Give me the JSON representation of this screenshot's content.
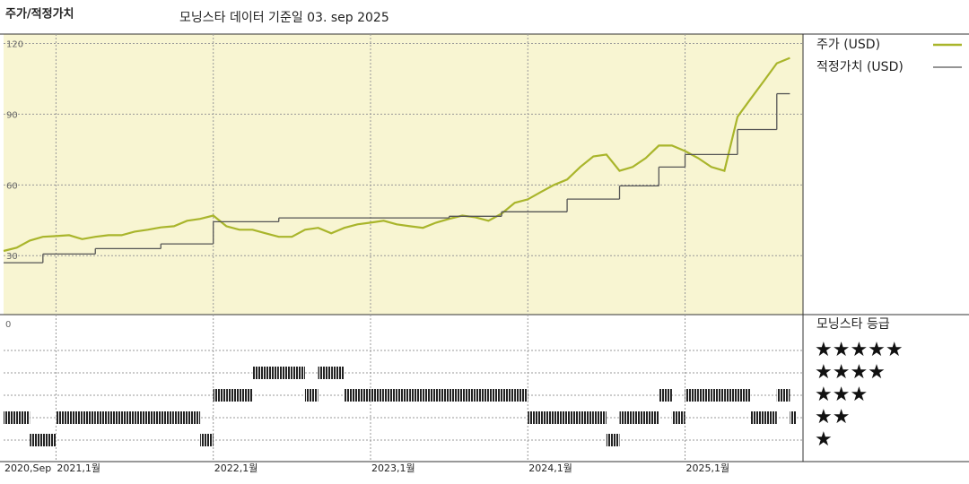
{
  "chart_data": {
    "type": "line",
    "title": "주가/적정가치",
    "subtitle": "모닝스타 데이터 기준일 03. sep 2025",
    "xlim": [
      "2020-09",
      "2025-10"
    ],
    "xticks": [
      {
        "value": "2020-09",
        "label": "2020,Sep"
      },
      {
        "value": "2021-01",
        "label": "2021,1월"
      },
      {
        "value": "2022-01",
        "label": "2022,1월"
      },
      {
        "value": "2023-01",
        "label": "2023,1월"
      },
      {
        "value": "2024-01",
        "label": "2024,1월"
      },
      {
        "value": "2025-01",
        "label": "2025,1월"
      }
    ],
    "ylim": [
      5,
      124
    ],
    "yticks": [
      30,
      60,
      90,
      120
    ],
    "grid": true,
    "legend": "right",
    "series": [
      {
        "name": "주가 (USD)",
        "color": "#a9b52b",
        "style": "line",
        "x": [
          "2020-09",
          "2020-10",
          "2020-11",
          "2020-12",
          "2021-01",
          "2021-02",
          "2021-03",
          "2021-04",
          "2021-05",
          "2021-06",
          "2021-07",
          "2021-08",
          "2021-09",
          "2021-10",
          "2021-11",
          "2021-12",
          "2022-01",
          "2022-02",
          "2022-03",
          "2022-04",
          "2022-05",
          "2022-06",
          "2022-07",
          "2022-08",
          "2022-09",
          "2022-10",
          "2022-11",
          "2022-12",
          "2023-01",
          "2023-02",
          "2023-03",
          "2023-04",
          "2023-05",
          "2023-06",
          "2023-07",
          "2023-08",
          "2023-09",
          "2023-10",
          "2023-11",
          "2023-12",
          "2024-01",
          "2024-02",
          "2024-03",
          "2024-04",
          "2024-05",
          "2024-06",
          "2024-07",
          "2024-08",
          "2024-09",
          "2024-10",
          "2024-11",
          "2024-12",
          "2025-01",
          "2025-02",
          "2025-03",
          "2025-04",
          "2025-05",
          "2025-06",
          "2025-07",
          "2025-08",
          "2025-09"
        ],
        "values": [
          32,
          33.4,
          36.4,
          38,
          38.3,
          38.7,
          37,
          38,
          38.7,
          38.7,
          40.2,
          41,
          42,
          42.5,
          44.8,
          45.6,
          47,
          42.5,
          41,
          41,
          39.5,
          38,
          38,
          41,
          41.8,
          39.5,
          41.8,
          43.3,
          44,
          44.8,
          43.3,
          42.5,
          41.8,
          44,
          45.6,
          47,
          46.3,
          44.8,
          47.8,
          52.4,
          53.9,
          57,
          60,
          62.3,
          67.6,
          72.1,
          72.9,
          66,
          67.6,
          71.4,
          76.7,
          76.7,
          74.4,
          71.4,
          67.6,
          66,
          88.9,
          96.5,
          104,
          111.6,
          113.9
        ]
      },
      {
        "name": "적정가치 (USD)",
        "color": "#555555",
        "style": "step",
        "x": [
          "2020-09",
          "2020-12",
          "2021-04",
          "2021-09",
          "2022-01",
          "2022-06",
          "2023-07",
          "2023-11",
          "2024-04",
          "2024-08",
          "2024-11",
          "2025-01",
          "2025-05",
          "2025-08"
        ],
        "values": [
          27,
          30.7,
          33,
          35,
          44.4,
          46,
          46.7,
          48.6,
          54,
          59.6,
          67.6,
          72.9,
          83.5,
          98.7
        ]
      }
    ],
    "rating_panel": {
      "title": "모닝스타 등급",
      "axis_label": "0",
      "star_labels": [
        "★★★★★",
        "★★★★",
        "★★★",
        "★★",
        "★"
      ],
      "values": [
        2,
        2,
        1,
        1,
        2,
        2,
        2,
        2,
        2,
        2,
        2,
        2,
        2,
        2,
        2,
        1,
        3,
        3,
        3,
        4,
        4,
        4,
        4,
        3,
        4,
        4,
        3,
        3,
        3,
        3,
        3,
        3,
        3,
        3,
        3,
        3,
        3,
        3,
        3,
        3,
        2,
        2,
        2,
        2,
        2,
        2,
        1,
        2,
        2,
        2,
        3,
        2,
        3,
        3,
        3,
        3,
        3,
        2,
        2,
        3,
        2
      ]
    }
  }
}
